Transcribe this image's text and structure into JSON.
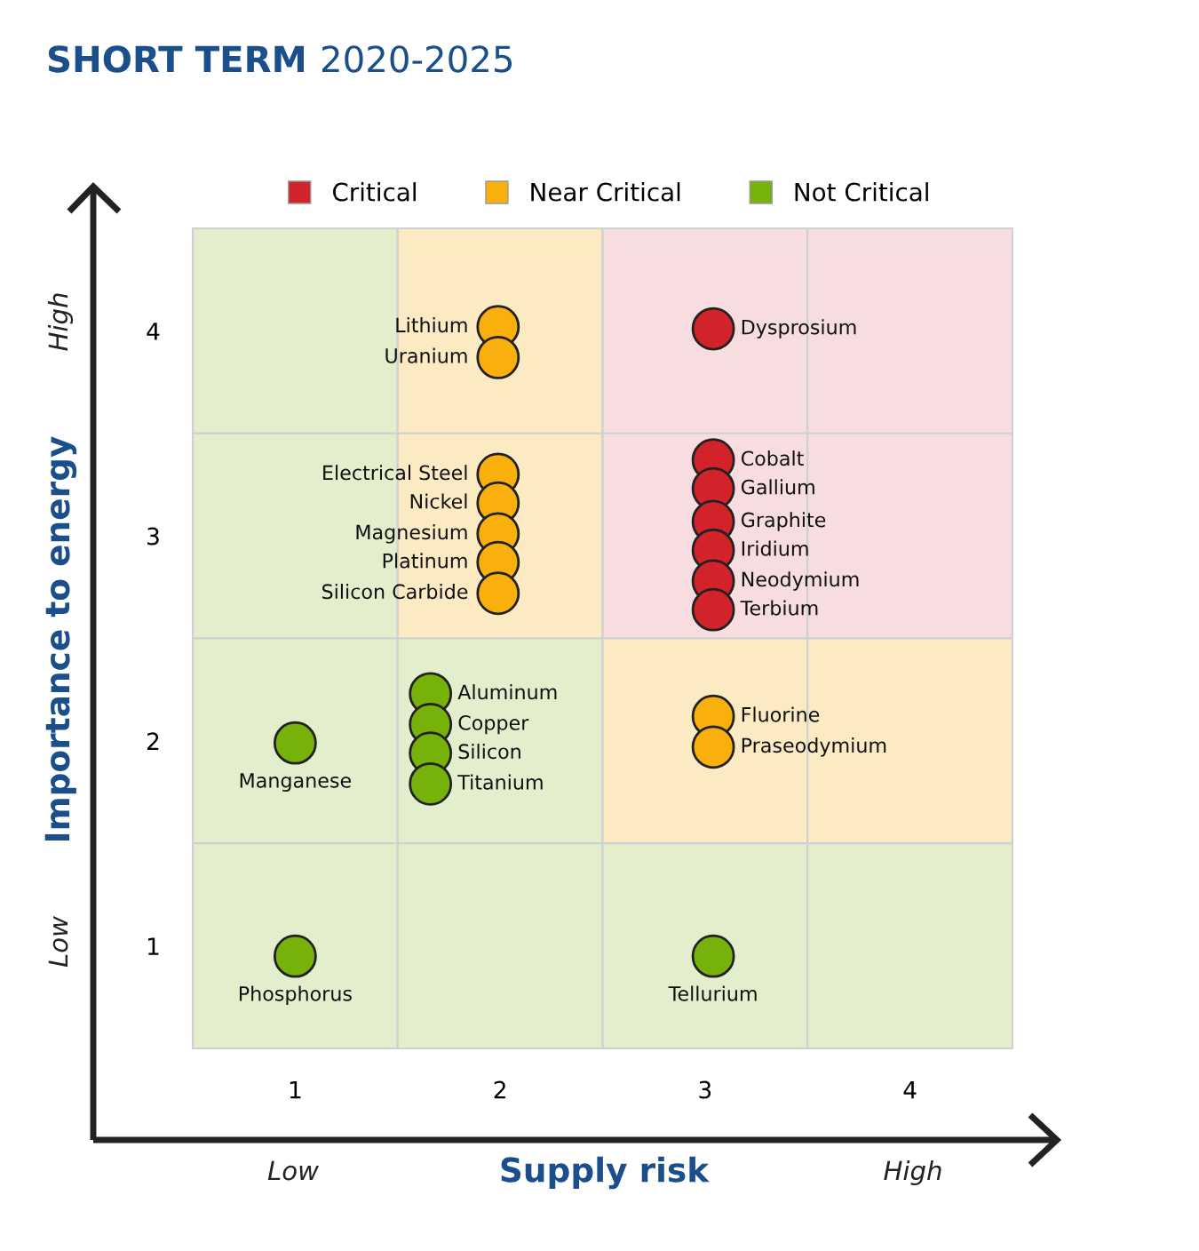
{
  "chart_data": {
    "type": "scatter",
    "title": "SHORT TERM",
    "subtitle": "2020-2025",
    "xlabel": "Supply risk",
    "ylabel": "Importance to energy",
    "xlim": [
      0.5,
      4.5
    ],
    "ylim": [
      0.5,
      4.5
    ],
    "xticks": [
      1,
      2,
      3,
      4
    ],
    "yticks": [
      1,
      2,
      3,
      4
    ],
    "grid": false,
    "legend": "top",
    "marker": "circle",
    "series": [
      {
        "name": "Critical",
        "color": "#d2232a",
        "x": [
          3.04,
          3.04,
          3.04,
          3.04,
          3.04,
          3.04,
          3.04
        ],
        "values": [
          4.01,
          3.37,
          3.23,
          3.07,
          2.93,
          2.78,
          2.64
        ]
      },
      {
        "name": "Near Critical",
        "color": "#f9b00d",
        "x": [
          1.99,
          1.99,
          1.99,
          1.99,
          1.99,
          1.99,
          1.99,
          3.04,
          3.04
        ],
        "values": [
          4.02,
          3.87,
          3.3,
          3.16,
          3.01,
          2.87,
          2.72,
          2.12,
          1.97
        ]
      },
      {
        "name": "Not Critical",
        "color": "#76b20a",
        "x": [
          1.0,
          1.66,
          1.66,
          1.66,
          1.66,
          1.0,
          3.04
        ],
        "values": [
          1.99,
          2.23,
          2.08,
          1.94,
          1.79,
          0.95,
          0.95
        ]
      }
    ],
    "annotations": [
      {
        "text": "Dysprosium",
        "x": 3.04,
        "y": 4.01
      },
      {
        "text": "Cobalt",
        "x": 3.04,
        "y": 3.37
      },
      {
        "text": "Gallium",
        "x": 3.04,
        "y": 3.23
      },
      {
        "text": "Graphite",
        "x": 3.04,
        "y": 3.07
      },
      {
        "text": "Iridium",
        "x": 3.04,
        "y": 2.93
      },
      {
        "text": "Neodymium",
        "x": 3.04,
        "y": 2.78
      },
      {
        "text": "Terbium",
        "x": 3.04,
        "y": 2.64
      },
      {
        "text": "Lithium",
        "x": 1.99,
        "y": 4.02
      },
      {
        "text": "Uranium",
        "x": 1.99,
        "y": 3.87
      },
      {
        "text": "Electrical Steel",
        "x": 1.99,
        "y": 3.3
      },
      {
        "text": "Nickel",
        "x": 1.99,
        "y": 3.16
      },
      {
        "text": "Magnesium",
        "x": 1.99,
        "y": 3.01
      },
      {
        "text": "Platinum",
        "x": 1.99,
        "y": 2.87
      },
      {
        "text": "Silicon Carbide",
        "x": 1.99,
        "y": 2.72
      },
      {
        "text": "Fluorine",
        "x": 3.04,
        "y": 2.12
      },
      {
        "text": "Praseodymium",
        "x": 3.04,
        "y": 1.97
      },
      {
        "text": "Manganese",
        "x": 1.0,
        "y": 1.99
      },
      {
        "text": "Aluminum",
        "x": 1.66,
        "y": 2.23
      },
      {
        "text": "Copper",
        "x": 1.66,
        "y": 2.08
      },
      {
        "text": "Silicon",
        "x": 1.66,
        "y": 1.94
      },
      {
        "text": "Titanium",
        "x": 1.66,
        "y": 1.79
      },
      {
        "text": "Phosphorus",
        "x": 1.0,
        "y": 0.95
      },
      {
        "text": "Tellurium",
        "x": 3.04,
        "y": 0.95
      },
      "Low",
      "High",
      "Low",
      "High"
    ]
  }
}
